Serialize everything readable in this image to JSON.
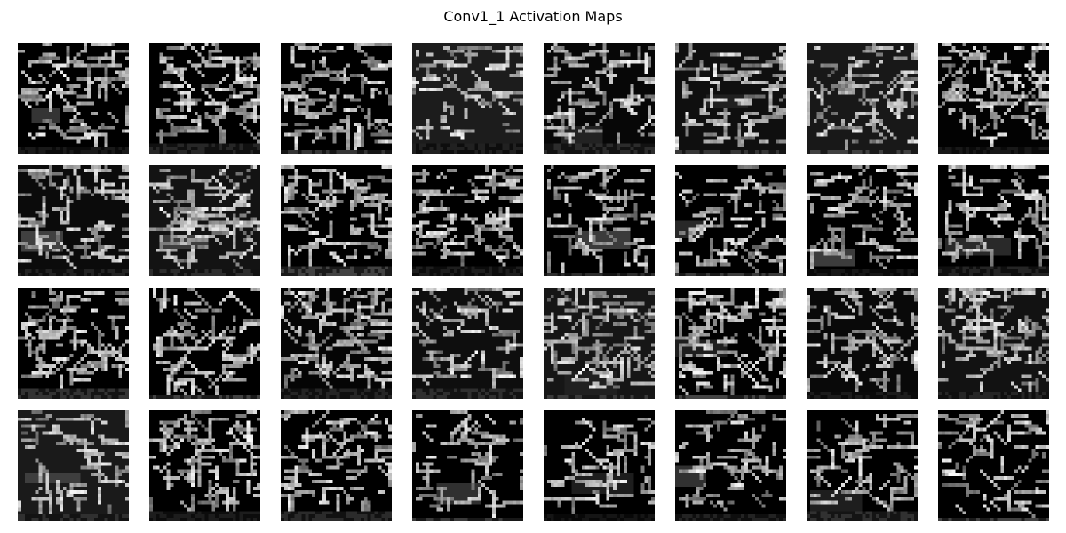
{
  "title": "Conv1_1 Activation Maps",
  "chart_data": {
    "type": "heatmap",
    "title": "Conv1_1 Activation Maps",
    "colormap": "gray",
    "layout": {
      "rows": 4,
      "cols": 8
    },
    "map_count": 32,
    "map_resolution": 32,
    "axes_visible": false
  }
}
